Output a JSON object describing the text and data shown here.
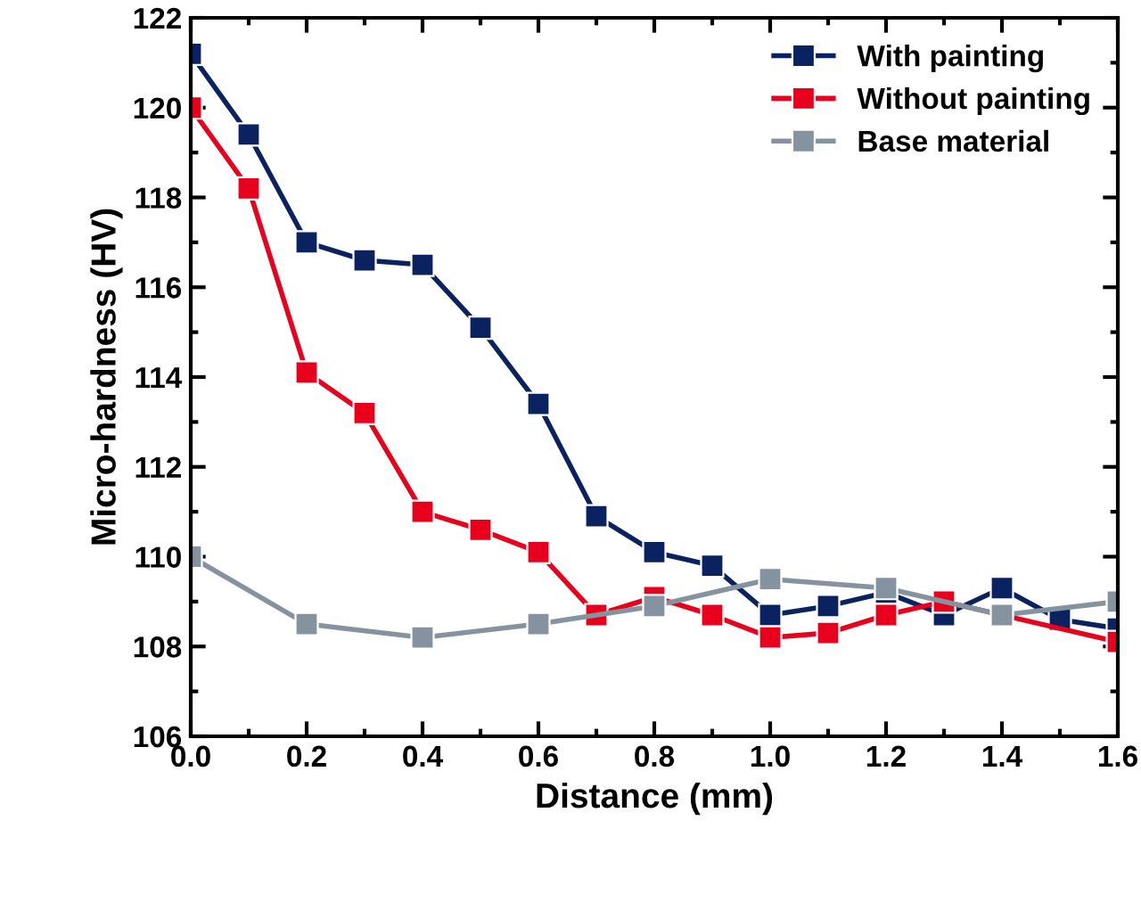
{
  "chart_data": {
    "type": "line",
    "xlabel": "Distance (mm)",
    "ylabel": "Micro-hardness (HV)",
    "xlim": [
      0,
      1.6
    ],
    "xticks": [
      {
        "value": 0,
        "label": "0.0"
      },
      0.2,
      0.4,
      0.6,
      0.8,
      {
        "value": 1,
        "label": "1.0"
      },
      1.2,
      1.4,
      1.6
    ],
    "ylim": [
      106,
      122
    ],
    "yticks": [
      106,
      108,
      110,
      112,
      114,
      116,
      118,
      120,
      122
    ],
    "marker": "square",
    "legend": "top right",
    "grid": false,
    "series": [
      {
        "name": "With painting",
        "color": "#0b2260",
        "x": [
          0,
          0.1,
          0.2,
          0.3,
          0.4,
          0.5,
          0.6,
          0.7,
          0.8,
          0.9,
          1.0,
          1.1,
          1.2,
          1.3,
          1.4,
          1.5,
          1.6
        ],
        "values": [
          121.2,
          119.4,
          117.0,
          116.6,
          116.5,
          115.1,
          113.4,
          110.9,
          110.1,
          109.8,
          108.7,
          108.9,
          109.2,
          108.7,
          109.3,
          108.6,
          108.4
        ]
      },
      {
        "name": "Without painting",
        "color": "#e8001c",
        "x": [
          0,
          0.1,
          0.2,
          0.3,
          0.4,
          0.5,
          0.6,
          0.7,
          0.8,
          0.9,
          1.0,
          1.1,
          1.2,
          1.3,
          1.4,
          1.5,
          1.6
        ],
        "values": [
          120.0,
          118.2,
          114.1,
          113.2,
          111.0,
          110.6,
          110.1,
          108.7,
          109.1,
          108.7,
          108.2,
          108.3,
          108.7,
          109.0,
          null,
          null,
          108.1
        ]
      },
      {
        "name": "Base material",
        "color": "#8593a0",
        "x": [
          0,
          0.2,
          0.4,
          0.6,
          0.8,
          1.0,
          1.2,
          1.4,
          1.6
        ],
        "values": [
          110.0,
          108.5,
          108.2,
          108.5,
          108.9,
          109.5,
          109.3,
          108.7,
          109.0
        ]
      }
    ]
  }
}
